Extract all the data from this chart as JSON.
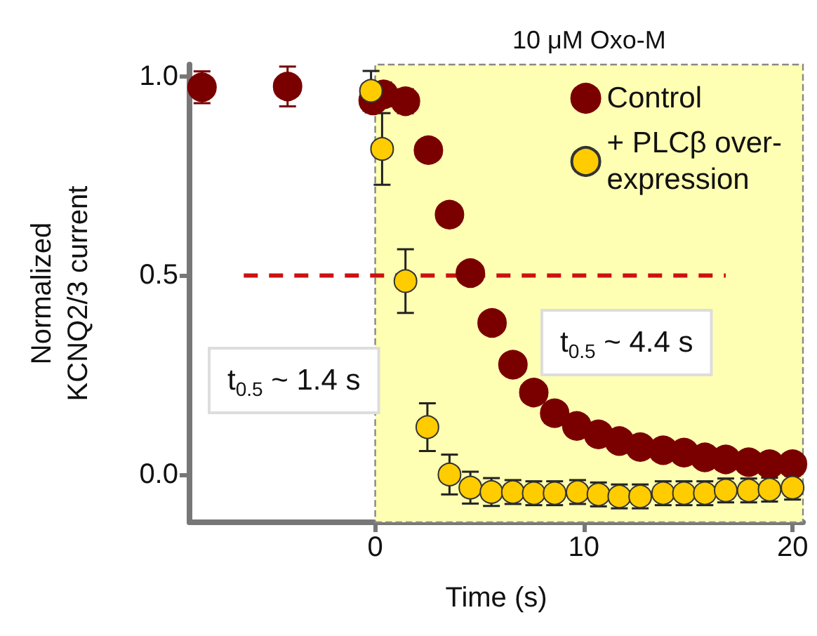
{
  "chart_data": {
    "type": "scatter",
    "xlabel": "Time (s)",
    "ylabel": "Normalized\nKCNQ2/3 current",
    "xlim": [
      -8.9,
      20.5
    ],
    "ylim": [
      -0.12,
      1.03
    ],
    "xticks": [
      0,
      10,
      20
    ],
    "yticks": [
      {
        "value": 0,
        "label": "0.0"
      },
      {
        "value": 0.5,
        "label": "0.5"
      },
      {
        "value": 1,
        "label": "1.0"
      }
    ],
    "marker": "circle",
    "legend": "top right",
    "grid": false,
    "bands": [
      {
        "axis": "x",
        "from": 0,
        "to": 20.5,
        "label": "10 μM Oxo-M",
        "color": "#ffffb3"
      }
    ],
    "annotations": [
      "t$_{0.5}$ ~ 1.4 s",
      "t$_{0.5}$ ~ 4.4 s"
    ],
    "series": [
      {
        "name": "Control",
        "color": "#7a0000",
        "x": [
          -8.3,
          -4.2,
          -0.1,
          0.4,
          1.45,
          2.55,
          3.56,
          4.56,
          5.6,
          6.6,
          7.6,
          8.6,
          9.66,
          10.7,
          11.7,
          12.7,
          13.8,
          14.8,
          15.8,
          16.8,
          17.9,
          18.9,
          20.0
        ],
        "values": [
          0.973,
          0.975,
          0.94,
          0.955,
          0.938,
          0.815,
          0.653,
          0.506,
          0.381,
          0.276,
          0.206,
          0.154,
          0.122,
          0.101,
          0.084,
          0.069,
          0.061,
          0.055,
          0.043,
          0.038,
          0.031,
          0.026,
          0.026
        ],
        "errors": [
          0.04,
          0.05,
          0.03,
          0.03,
          0.03,
          0.025,
          0.025,
          0.025,
          0.02,
          null,
          null,
          null,
          null,
          null,
          null,
          null,
          null,
          null,
          null,
          null,
          null,
          null,
          null
        ]
      },
      {
        "name": "+ PLCβ over-expression",
        "color": "#ffcc00",
        "x": [
          -0.2,
          0.33,
          1.45,
          2.5,
          3.56,
          4.56,
          5.57,
          6.6,
          7.6,
          8.6,
          9.7,
          10.7,
          11.7,
          12.7,
          13.8,
          14.8,
          15.8,
          16.8,
          17.9,
          18.9,
          20.0
        ],
        "values": [
          0.964,
          0.818,
          0.486,
          0.119,
          0.0,
          -0.033,
          -0.044,
          -0.044,
          -0.047,
          -0.047,
          -0.044,
          -0.05,
          -0.055,
          -0.055,
          -0.047,
          -0.047,
          -0.047,
          -0.04,
          -0.04,
          -0.038,
          -0.033
        ],
        "errors": [
          0.05,
          0.09,
          0.08,
          0.06,
          0.05,
          0.04,
          0.035,
          0.03,
          0.03,
          0.03,
          0.03,
          0.03,
          0.03,
          0.03,
          0.03,
          0.03,
          0.03,
          0.03,
          0.03,
          0.03,
          0.03
        ]
      },
      {
        "type": "line",
        "color": "#cc1111",
        "line_style": "dashed",
        "marker": "none",
        "x": [
          -6.3,
          16.8
        ],
        "values": [
          0.5,
          0.5
        ]
      }
    ]
  }
}
